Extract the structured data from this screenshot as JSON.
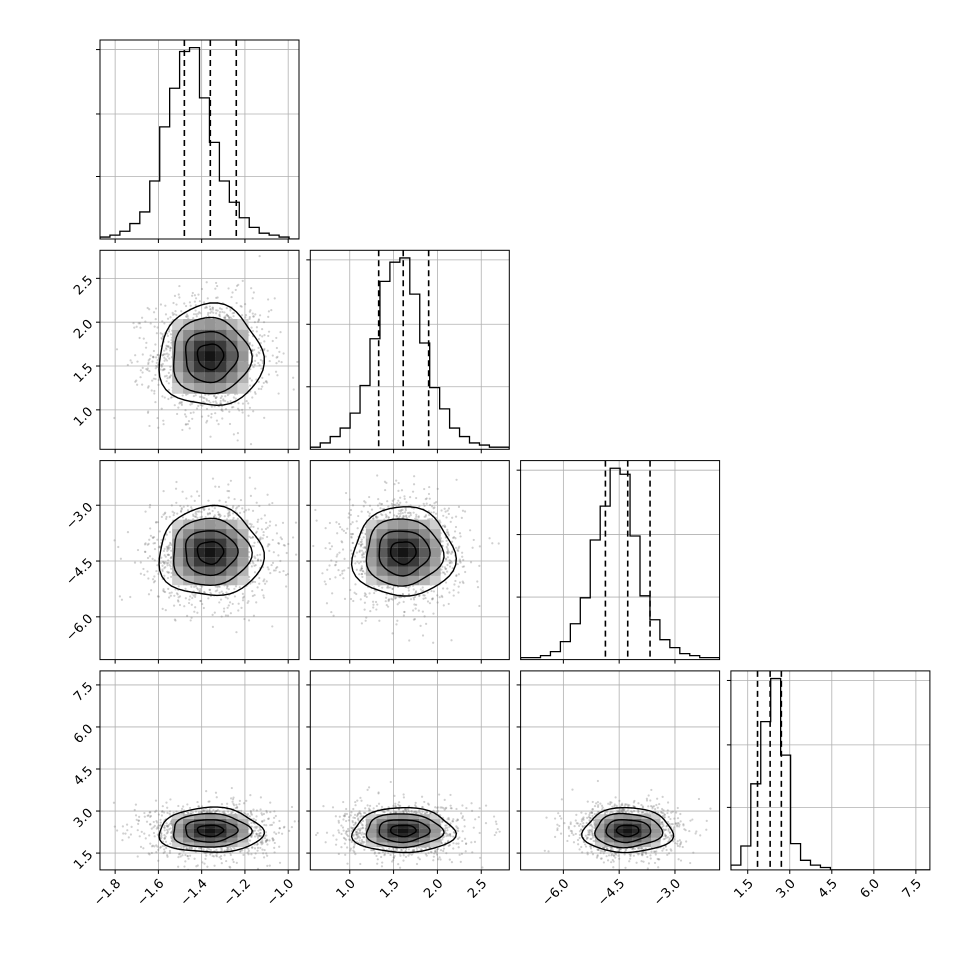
{
  "chart_data": {
    "type": "corner",
    "grid": true,
    "parameters": 4,
    "axes": [
      {
        "ticks": [
          -1.8,
          -1.6,
          -1.4,
          -1.2,
          -1.0
        ],
        "tick_labels": [
          "−1.8",
          "−1.6",
          "−1.4",
          "−1.2",
          "−1.0"
        ],
        "range": [
          -1.87,
          -0.95
        ]
      },
      {
        "ticks": [
          1.0,
          1.5,
          2.0,
          2.5
        ],
        "tick_labels": [
          "1.0",
          "1.5",
          "2.0",
          "2.5"
        ],
        "range": [
          0.55,
          2.82
        ]
      },
      {
        "ticks": [
          -6.0,
          -4.5,
          -3.0
        ],
        "tick_labels": [
          "−6.0",
          "−4.5",
          "−3.0"
        ],
        "range": [
          -7.15,
          -1.8
        ]
      },
      {
        "ticks": [
          1.5,
          3.0,
          4.5,
          6.0,
          7.5
        ],
        "tick_labels": [
          "1.5",
          "3.0",
          "4.5",
          "6.0",
          "7.5"
        ],
        "range": [
          0.9,
          8.0
        ]
      }
    ],
    "histograms": [
      {
        "counts": [
          1,
          2,
          4,
          8,
          14,
          30,
          58,
          78,
          97,
          99,
          73,
          50,
          30,
          19,
          11,
          6,
          3,
          2,
          1,
          0
        ],
        "quantiles": [
          -1.48,
          -1.36,
          -1.24
        ]
      },
      {
        "counts": [
          1,
          3,
          6,
          10,
          17,
          30,
          52,
          79,
          88,
          90,
          73,
          50,
          29,
          19,
          10,
          6,
          3,
          2,
          1,
          1
        ],
        "quantiles": [
          1.33,
          1.61,
          1.9
        ]
      },
      {
        "counts": [
          1,
          1,
          2,
          4,
          9,
          18,
          31,
          60,
          77,
          96,
          93,
          62,
          32,
          20,
          10,
          6,
          3,
          2,
          1,
          1
        ],
        "quantiles": [
          -4.87,
          -4.27,
          -3.67
        ]
      },
      {
        "counts": [
          2,
          10,
          36,
          62,
          80,
          48,
          11,
          4,
          2,
          1,
          0,
          0,
          0,
          0,
          0,
          0,
          0,
          0,
          0,
          0
        ],
        "quantiles": [
          1.85,
          2.3,
          2.7
        ]
      }
    ],
    "joint": [
      {
        "x": 0,
        "y": 1,
        "center": [
          -1.36,
          1.61
        ],
        "sigma": [
          0.12,
          0.29
        ],
        "rho": 0
      },
      {
        "x": 0,
        "y": 2,
        "center": [
          -1.36,
          -4.27
        ],
        "sigma": [
          0.12,
          0.6
        ],
        "rho": 0
      },
      {
        "x": 1,
        "y": 2,
        "center": [
          1.61,
          -4.27
        ],
        "sigma": [
          0.29,
          0.6
        ],
        "rho": 0
      },
      {
        "x": 0,
        "y": 3,
        "center": [
          -1.36,
          2.3
        ],
        "sigma": [
          0.12,
          0.4
        ],
        "rho": 0
      },
      {
        "x": 1,
        "y": 3,
        "center": [
          1.61,
          2.3
        ],
        "sigma": [
          0.29,
          0.4
        ],
        "rho": 0
      },
      {
        "x": 2,
        "y": 3,
        "center": [
          -4.27,
          2.3
        ],
        "sigma": [
          0.6,
          0.4
        ],
        "rho": 0
      }
    ],
    "contour_levels_sigma": [
      0.5,
      1.0,
      1.5,
      2.0
    ],
    "title": "",
    "xlabel": "",
    "ylabel": ""
  }
}
